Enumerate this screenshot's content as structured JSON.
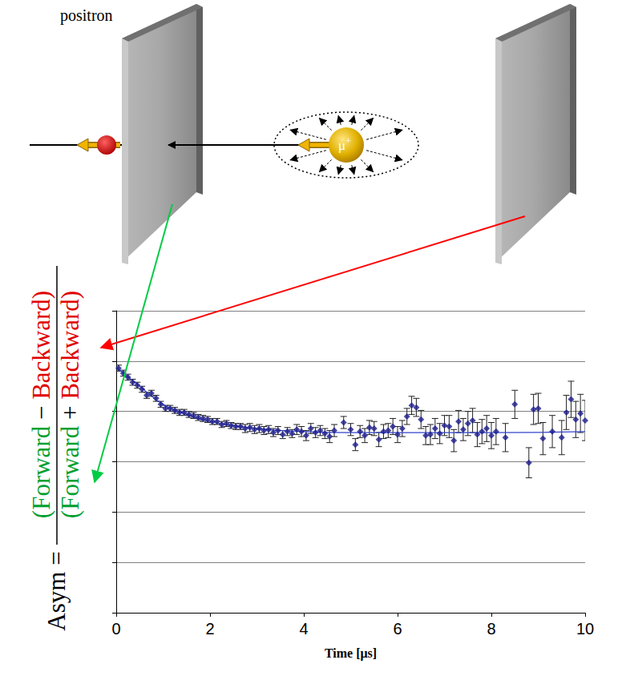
{
  "chart_data": {
    "type": "scatter",
    "xlabel": "Time [μs]",
    "ylabel": {
      "prefix": "Asym =",
      "numerator": [
        "(Forward",
        "−",
        "Backward)"
      ],
      "denominator": [
        "(Forward",
        "+",
        "Backward)"
      ]
    },
    "annotations": {
      "particle": "positron",
      "muon": "μ+"
    },
    "x": [
      0.05,
      0.15,
      0.25,
      0.35,
      0.45,
      0.55,
      0.65,
      0.75,
      0.85,
      0.95,
      1.05,
      1.15,
      1.25,
      1.35,
      1.45,
      1.55,
      1.65,
      1.75,
      1.85,
      1.95,
      2.05,
      2.15,
      2.25,
      2.35,
      2.45,
      2.55,
      2.65,
      2.75,
      2.85,
      2.95,
      3.05,
      3.15,
      3.25,
      3.35,
      3.45,
      3.55,
      3.65,
      3.75,
      3.85,
      3.95,
      4.05,
      4.15,
      4.25,
      4.35,
      4.45,
      4.55,
      4.65,
      4.85,
      5.0,
      5.1,
      5.2,
      5.3,
      5.4,
      5.5,
      5.6,
      5.7,
      5.8,
      5.9,
      6.0,
      6.1,
      6.2,
      6.3,
      6.4,
      6.5,
      6.6,
      6.7,
      6.8,
      6.9,
      7.0,
      7.1,
      7.2,
      7.3,
      7.4,
      7.5,
      7.6,
      7.7,
      7.8,
      7.9,
      8.0,
      8.1,
      8.3,
      8.5,
      8.8,
      8.9,
      9.0,
      9.1,
      9.3,
      9.5,
      9.6,
      9.7,
      9.8,
      9.9,
      10.0
    ],
    "values": [
      0.243,
      0.238,
      0.234,
      0.229,
      0.226,
      0.222,
      0.216,
      0.218,
      0.213,
      0.207,
      0.203,
      0.203,
      0.201,
      0.199,
      0.199,
      0.197,
      0.196,
      0.194,
      0.193,
      0.192,
      0.19,
      0.19,
      0.187,
      0.188,
      0.186,
      0.185,
      0.185,
      0.183,
      0.184,
      0.182,
      0.183,
      0.181,
      0.182,
      0.179,
      0.181,
      0.177,
      0.18,
      0.178,
      0.182,
      0.18,
      0.176,
      0.183,
      0.179,
      0.181,
      0.178,
      0.175,
      0.181,
      0.189,
      0.182,
      0.167,
      0.18,
      0.176,
      0.184,
      0.183,
      0.172,
      0.18,
      0.181,
      0.185,
      0.177,
      0.183,
      0.195,
      0.206,
      0.204,
      0.192,
      0.176,
      0.177,
      0.183,
      0.178,
      0.186,
      0.185,
      0.171,
      0.19,
      0.182,
      0.188,
      0.191,
      0.177,
      0.18,
      0.183,
      0.176,
      0.18,
      0.174,
      0.207,
      0.149,
      0.202,
      0.203,
      0.173,
      0.18,
      0.174,
      0.199,
      0.212,
      0.192,
      0.198,
      0.191
    ],
    "errors": [
      0.003,
      0.003,
      0.003,
      0.003,
      0.003,
      0.003,
      0.003,
      0.003,
      0.003,
      0.003,
      0.003,
      0.003,
      0.003,
      0.003,
      0.003,
      0.003,
      0.003,
      0.003,
      0.003,
      0.003,
      0.003,
      0.003,
      0.003,
      0.003,
      0.003,
      0.003,
      0.003,
      0.004,
      0.004,
      0.004,
      0.004,
      0.004,
      0.004,
      0.004,
      0.004,
      0.004,
      0.004,
      0.004,
      0.005,
      0.005,
      0.005,
      0.005,
      0.005,
      0.005,
      0.005,
      0.006,
      0.006,
      0.006,
      0.006,
      0.006,
      0.006,
      0.007,
      0.007,
      0.007,
      0.007,
      0.007,
      0.007,
      0.008,
      0.008,
      0.008,
      0.008,
      0.009,
      0.009,
      0.009,
      0.009,
      0.01,
      0.01,
      0.01,
      0.01,
      0.011,
      0.011,
      0.011,
      0.011,
      0.012,
      0.012,
      0.012,
      0.012,
      0.013,
      0.013,
      0.013,
      0.014,
      0.014,
      0.015,
      0.015,
      0.015,
      0.016,
      0.016,
      0.017,
      0.017,
      0.018,
      0.018,
      0.019,
      0.02
    ],
    "color": "#1c1c8c",
    "marker": "diamond",
    "fit": {
      "type": "line",
      "x": [
        0,
        0.5,
        1,
        1.5,
        2,
        3,
        4,
        5,
        6,
        8,
        10
      ],
      "values": [
        0.244,
        0.225,
        0.207,
        0.197,
        0.19,
        0.183,
        0.18,
        0.179,
        0.179,
        0.179,
        0.18
      ],
      "color": "#3344cc"
    },
    "xlim": [
      0,
      10
    ],
    "xticks": [
      0,
      2,
      4,
      6,
      8,
      10
    ],
    "ylim": [
      0,
      0.3
    ],
    "yticks": [
      0,
      0.05,
      0.1,
      0.15,
      0.2,
      0.25,
      0.3
    ],
    "grid": "y",
    "tick_labels": "x"
  }
}
